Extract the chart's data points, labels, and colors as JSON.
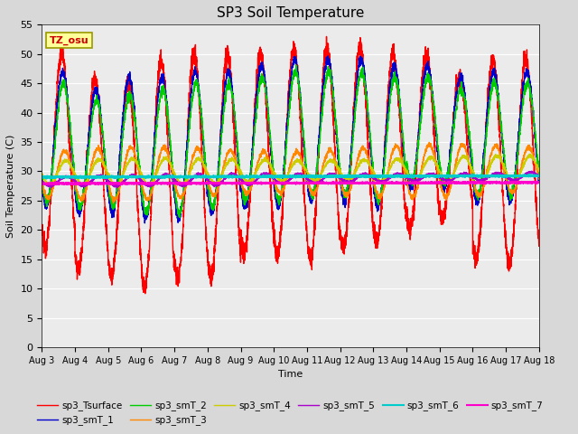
{
  "title": "SP3 Soil Temperature",
  "xlabel": "Time",
  "ylabel": "Soil Temperature (C)",
  "ylim": [
    0,
    55
  ],
  "yticks": [
    0,
    5,
    10,
    15,
    20,
    25,
    30,
    35,
    40,
    45,
    50,
    55
  ],
  "n_days": 15,
  "tz_label": "TZ_osu",
  "series_colors": {
    "sp3_Tsurface": "#ff0000",
    "sp3_smT_1": "#0000cc",
    "sp3_smT_2": "#00cc00",
    "sp3_smT_3": "#ff8800",
    "sp3_smT_4": "#cccc00",
    "sp3_smT_5": "#aa00cc",
    "sp3_smT_6": "#00cccc",
    "sp3_smT_7": "#ff00cc"
  },
  "background_color": "#d8d8d8",
  "plot_bg_color": "#ebebeb",
  "grid_color": "#ffffff",
  "surface_mins": [
    17,
    13,
    12,
    10,
    12,
    12,
    16,
    16,
    15,
    17,
    18,
    20,
    22,
    15,
    14
  ],
  "surface_maxs": [
    50,
    46,
    45,
    49,
    50,
    50,
    50,
    51,
    51,
    51,
    50,
    50,
    46,
    49,
    49
  ],
  "smT1_mins": [
    24,
    23,
    23,
    22,
    22,
    23,
    24,
    24,
    25,
    25,
    24,
    27,
    27,
    25,
    25
  ],
  "smT1_maxs": [
    47,
    44,
    46,
    46,
    47,
    47,
    48,
    49,
    49,
    49,
    48,
    48,
    46,
    47,
    47
  ],
  "smT2_mins": [
    25,
    24,
    24,
    23,
    23,
    24,
    25,
    25,
    26,
    26,
    25,
    28,
    28,
    26,
    26
  ],
  "smT2_maxs": [
    45,
    42,
    43,
    44,
    45,
    45,
    46,
    47,
    47,
    47,
    46,
    46,
    44,
    45,
    45
  ],
  "pts_per_day": 288
}
